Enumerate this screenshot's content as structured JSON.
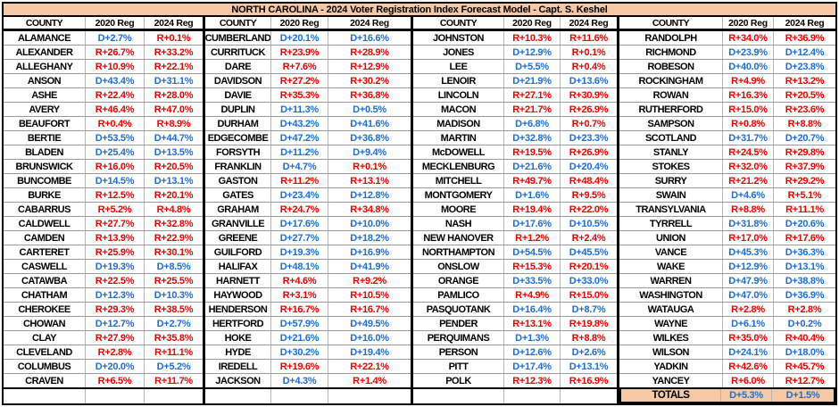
{
  "title": "NORTH CAROLINA  -  2024 Voter Registration Index Forecast Model - Capt. S. Keshel",
  "columns": [
    "COUNTY",
    "2020 Reg",
    "2024 Reg"
  ],
  "colors": {
    "dem_blue": "#1E6FD1",
    "rep_red": "#F40000",
    "peach_header": "#F6C9A6"
  },
  "groups": [
    {
      "rows": [
        {
          "county": "ALAMANCE",
          "reg2020": "D+2.7%",
          "reg2024": "R+0.1%"
        },
        {
          "county": "ALEXANDER",
          "reg2020": "R+26.7%",
          "reg2024": "R+33.2%"
        },
        {
          "county": "ALLEGHANY",
          "reg2020": "R+10.9%",
          "reg2024": "R+22.1%"
        },
        {
          "county": "ANSON",
          "reg2020": "D+43.4%",
          "reg2024": "D+31.1%"
        },
        {
          "county": "ASHE",
          "reg2020": "R+22.4%",
          "reg2024": "R+28.0%"
        },
        {
          "county": "AVERY",
          "reg2020": "R+46.4%",
          "reg2024": "R+47.0%"
        },
        {
          "county": "BEAUFORT",
          "reg2020": "R+0.4%",
          "reg2024": "R+8.9%"
        },
        {
          "county": "BERTIE",
          "reg2020": "D+53.5%",
          "reg2024": "D+44.7%"
        },
        {
          "county": "BLADEN",
          "reg2020": "D+25.4%",
          "reg2024": "D+13.5%"
        },
        {
          "county": "BRUNSWICK",
          "reg2020": "R+16.0%",
          "reg2024": "R+20.5%"
        },
        {
          "county": "BUNCOMBE",
          "reg2020": "D+14.5%",
          "reg2024": "D+13.1%"
        },
        {
          "county": "BURKE",
          "reg2020": "R+12.5%",
          "reg2024": "R+20.1%"
        },
        {
          "county": "CABARRUS",
          "reg2020": "R+5.2%",
          "reg2024": "R+4.8%"
        },
        {
          "county": "CALDWELL",
          "reg2020": "R+27.7%",
          "reg2024": "R+32.8%"
        },
        {
          "county": "CAMDEN",
          "reg2020": "R+13.9%",
          "reg2024": "R+22.9%"
        },
        {
          "county": "CARTERET",
          "reg2020": "R+25.9%",
          "reg2024": "R+30.1%"
        },
        {
          "county": "CASWELL",
          "reg2020": "D+19.3%",
          "reg2024": "D+8.5%"
        },
        {
          "county": "CATAWBA",
          "reg2020": "R+22.5%",
          "reg2024": "R+25.5%"
        },
        {
          "county": "CHATHAM",
          "reg2020": "D+12.3%",
          "reg2024": "D+10.3%"
        },
        {
          "county": "CHEROKEE",
          "reg2020": "R+29.3%",
          "reg2024": "R+38.5%"
        },
        {
          "county": "CHOWAN",
          "reg2020": "D+12.7%",
          "reg2024": "D+2.7%"
        },
        {
          "county": "CLAY",
          "reg2020": "R+27.9%",
          "reg2024": "R+35.8%"
        },
        {
          "county": "CLEVELAND",
          "reg2020": "R+2.8%",
          "reg2024": "R+11.1%"
        },
        {
          "county": "COLUMBUS",
          "reg2020": "D+20.0%",
          "reg2024": "D+5.2%"
        },
        {
          "county": "CRAVEN",
          "reg2020": "R+6.5%",
          "reg2024": "R+11.7%"
        }
      ]
    },
    {
      "rows": [
        {
          "county": "CUMBERLAND",
          "reg2020": "D+20.1%",
          "reg2024": "D+16.6%"
        },
        {
          "county": "CURRITUCK",
          "reg2020": "R+23.9%",
          "reg2024": "R+28.9%"
        },
        {
          "county": "DARE",
          "reg2020": "R+7.6%",
          "reg2024": "R+12.9%"
        },
        {
          "county": "DAVIDSON",
          "reg2020": "R+27.2%",
          "reg2024": "R+30.2%"
        },
        {
          "county": "DAVIE",
          "reg2020": "R+35.3%",
          "reg2024": "R+36.8%"
        },
        {
          "county": "DUPLIN",
          "reg2020": "D+11.3%",
          "reg2024": "D+0.5%"
        },
        {
          "county": "DURHAM",
          "reg2020": "D+43.2%",
          "reg2024": "D+41.6%"
        },
        {
          "county": "EDGECOMBE",
          "reg2020": "D+47.2%",
          "reg2024": "D+36.8%"
        },
        {
          "county": "FORSYTH",
          "reg2020": "D+11.2%",
          "reg2024": "D+9.4%"
        },
        {
          "county": "FRANKLIN",
          "reg2020": "D+4.7%",
          "reg2024": "R+0.1%"
        },
        {
          "county": "GASTON",
          "reg2020": "R+11.2%",
          "reg2024": "R+13.1%"
        },
        {
          "county": "GATES",
          "reg2020": "D+23.4%",
          "reg2024": "D+12.8%"
        },
        {
          "county": "GRAHAM",
          "reg2020": "R+24.7%",
          "reg2024": "R+34.8%"
        },
        {
          "county": "GRANVILLE",
          "reg2020": "D+17.6%",
          "reg2024": "D+10.0%"
        },
        {
          "county": "GREENE",
          "reg2020": "D+27.7%",
          "reg2024": "D+18.2%"
        },
        {
          "county": "GUILFORD",
          "reg2020": "D+19.3%",
          "reg2024": "D+16.9%"
        },
        {
          "county": "HALIFAX",
          "reg2020": "D+48.1%",
          "reg2024": "D+41.9%"
        },
        {
          "county": "HARNETT",
          "reg2020": "R+4.6%",
          "reg2024": "R+9.2%"
        },
        {
          "county": "HAYWOOD",
          "reg2020": "R+3.1%",
          "reg2024": "R+10.5%"
        },
        {
          "county": "HENDERSON",
          "reg2020": "R+16.7%",
          "reg2024": "R+16.7%"
        },
        {
          "county": "HERTFORD",
          "reg2020": "D+57.9%",
          "reg2024": "D+49.5%"
        },
        {
          "county": "HOKE",
          "reg2020": "D+21.6%",
          "reg2024": "D+16.0%"
        },
        {
          "county": "HYDE",
          "reg2020": "D+30.2%",
          "reg2024": "D+19.4%"
        },
        {
          "county": "IREDELL",
          "reg2020": "R+19.6%",
          "reg2024": "R+22.1%"
        },
        {
          "county": "JACKSON",
          "reg2020": "D+4.3%",
          "reg2024": "R+1.4%"
        }
      ]
    },
    {
      "rows": [
        {
          "county": "JOHNSTON",
          "reg2020": "R+10.3%",
          "reg2024": "R+11.6%"
        },
        {
          "county": "JONES",
          "reg2020": "D+12.9%",
          "reg2024": "R+0.1%"
        },
        {
          "county": "LEE",
          "reg2020": "D+5.5%",
          "reg2024": "R+0.4%"
        },
        {
          "county": "LENOIR",
          "reg2020": "D+21.9%",
          "reg2024": "D+13.6%"
        },
        {
          "county": "LINCOLN",
          "reg2020": "R+27.1%",
          "reg2024": "R+30.9%"
        },
        {
          "county": "MACON",
          "reg2020": "R+21.7%",
          "reg2024": "R+26.9%"
        },
        {
          "county": "MADISON",
          "reg2020": "D+6.8%",
          "reg2024": "R+0.7%"
        },
        {
          "county": "MARTIN",
          "reg2020": "D+32.8%",
          "reg2024": "D+23.3%"
        },
        {
          "county": "McDOWELL",
          "reg2020": "R+19.5%",
          "reg2024": "R+26.9%"
        },
        {
          "county": "MECKLENBURG",
          "reg2020": "D+21.6%",
          "reg2024": "D+20.4%"
        },
        {
          "county": "MITCHELL",
          "reg2020": "R+49.7%",
          "reg2024": "R+48.4%"
        },
        {
          "county": "MONTGOMERY",
          "reg2020": "D+1.6%",
          "reg2024": "R+9.5%"
        },
        {
          "county": "MOORE",
          "reg2020": "R+19.4%",
          "reg2024": "R+22.0%"
        },
        {
          "county": "NASH",
          "reg2020": "D+17.6%",
          "reg2024": "D+10.5%"
        },
        {
          "county": "NEW HANOVER",
          "reg2020": "R+1.2%",
          "reg2024": "R+2.4%"
        },
        {
          "county": "NORTHAMPTON",
          "reg2020": "D+54.5%",
          "reg2024": "D+45.5%"
        },
        {
          "county": "ONSLOW",
          "reg2020": "R+15.3%",
          "reg2024": "R+20.1%"
        },
        {
          "county": "ORANGE",
          "reg2020": "D+33.5%",
          "reg2024": "D+33.0%"
        },
        {
          "county": "PAMLICO",
          "reg2020": "R+4.9%",
          "reg2024": "R+15.0%"
        },
        {
          "county": "PASQUOTANK",
          "reg2020": "D+16.4%",
          "reg2024": "D+8.7%"
        },
        {
          "county": "PENDER",
          "reg2020": "R+13.1%",
          "reg2024": "R+19.8%"
        },
        {
          "county": "PERQUIMANS",
          "reg2020": "D+1.3%",
          "reg2024": "R+8.8%"
        },
        {
          "county": "PERSON",
          "reg2020": "D+12.6%",
          "reg2024": "D+2.6%"
        },
        {
          "county": "PITT",
          "reg2020": "D+17.4%",
          "reg2024": "D+13.1%"
        },
        {
          "county": "POLK",
          "reg2020": "R+12.3%",
          "reg2024": "R+16.9%"
        }
      ]
    },
    {
      "rows": [
        {
          "county": "RANDOLPH",
          "reg2020": "R+34.0%",
          "reg2024": "R+36.9%"
        },
        {
          "county": "RICHMOND",
          "reg2020": "D+23.9%",
          "reg2024": "D+12.4%"
        },
        {
          "county": "ROBESON",
          "reg2020": "D+40.0%",
          "reg2024": "D+23.8%"
        },
        {
          "county": "ROCKINGHAM",
          "reg2020": "R+4.9%",
          "reg2024": "R+13.2%"
        },
        {
          "county": "ROWAN",
          "reg2020": "R+16.3%",
          "reg2024": "R+20.5%"
        },
        {
          "county": "RUTHERFORD",
          "reg2020": "R+15.0%",
          "reg2024": "R+23.6%"
        },
        {
          "county": "SAMPSON",
          "reg2020": "R+0.8%",
          "reg2024": "R+8.8%"
        },
        {
          "county": "SCOTLAND",
          "reg2020": "D+31.7%",
          "reg2024": "D+20.7%"
        },
        {
          "county": "STANLY",
          "reg2020": "R+24.5%",
          "reg2024": "R+29.8%"
        },
        {
          "county": "STOKES",
          "reg2020": "R+32.0%",
          "reg2024": "R+37.9%"
        },
        {
          "county": "SURRY",
          "reg2020": "R+21.2%",
          "reg2024": "R+29.2%"
        },
        {
          "county": "SWAIN",
          "reg2020": "D+4.6%",
          "reg2024": "R+5.1%"
        },
        {
          "county": "TRANSYLVANIA",
          "reg2020": "R+8.8%",
          "reg2024": "R+11.1%"
        },
        {
          "county": "TYRRELL",
          "reg2020": "D+31.8%",
          "reg2024": "D+20.6%"
        },
        {
          "county": "UNION",
          "reg2020": "R+17.0%",
          "reg2024": "R+17.6%"
        },
        {
          "county": "VANCE",
          "reg2020": "D+45.3%",
          "reg2024": "D+36.3%"
        },
        {
          "county": "WAKE",
          "reg2020": "D+12.9%",
          "reg2024": "D+13.1%"
        },
        {
          "county": "WARREN",
          "reg2020": "D+47.9%",
          "reg2024": "D+38.8%"
        },
        {
          "county": "WASHINGTON",
          "reg2020": "D+47.0%",
          "reg2024": "D+36.9%"
        },
        {
          "county": "WATAUGA",
          "reg2020": "R+2.8%",
          "reg2024": "R+2.8%"
        },
        {
          "county": "WAYNE",
          "reg2020": "D+6.1%",
          "reg2024": "D+0.2%"
        },
        {
          "county": "WILKES",
          "reg2020": "R+35.0%",
          "reg2024": "R+40.4%"
        },
        {
          "county": "WILSON",
          "reg2020": "D+24.1%",
          "reg2024": "D+18.0%"
        },
        {
          "county": "YADKIN",
          "reg2020": "R+42.6%",
          "reg2024": "R+45.7%"
        },
        {
          "county": "YANCEY",
          "reg2020": "R+6.0%",
          "reg2024": "R+12.7%"
        }
      ]
    }
  ],
  "totals": {
    "label": "TOTALS",
    "reg2020": "D+5.3%",
    "reg2024": "D+1.5%"
  }
}
